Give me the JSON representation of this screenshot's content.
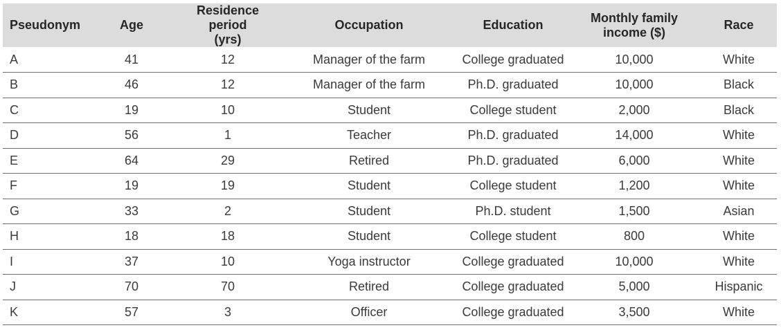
{
  "table": {
    "headers": [
      "Pseudonym",
      "Age",
      "Residence period\n(yrs)",
      "Occupation",
      "Education",
      "Monthly family\nincome ($)",
      "Race"
    ],
    "rows": [
      [
        "A",
        "41",
        "12",
        "Manager of the farm",
        "College graduated",
        "10,000",
        "White"
      ],
      [
        "B",
        "46",
        "12",
        "Manager of the farm",
        "Ph.D. graduated",
        "10,000",
        "Black"
      ],
      [
        "C",
        "19",
        "10",
        "Student",
        "College student",
        "2,000",
        "Black"
      ],
      [
        "D",
        "56",
        "1",
        "Teacher",
        "Ph.D. graduated",
        "14,000",
        "White"
      ],
      [
        "E",
        "64",
        "29",
        "Retired",
        "Ph.D. graduated",
        "6,000",
        "White"
      ],
      [
        "F",
        "19",
        "19",
        "Student",
        "College student",
        "1,200",
        "White"
      ],
      [
        "G",
        "33",
        "2",
        "Student",
        "Ph.D. student",
        "1,500",
        "Asian"
      ],
      [
        "H",
        "18",
        "18",
        "Student",
        "College student",
        "800",
        "White"
      ],
      [
        "I",
        "37",
        "10",
        "Yoga instructor",
        "College graduated",
        "10,000",
        "White"
      ],
      [
        "J",
        "70",
        "70",
        "Retired",
        "College graduated",
        "5,000",
        "Hispanic"
      ],
      [
        "K",
        "57",
        "3",
        "Officer",
        "College graduated",
        "3,500",
        "White"
      ]
    ]
  }
}
